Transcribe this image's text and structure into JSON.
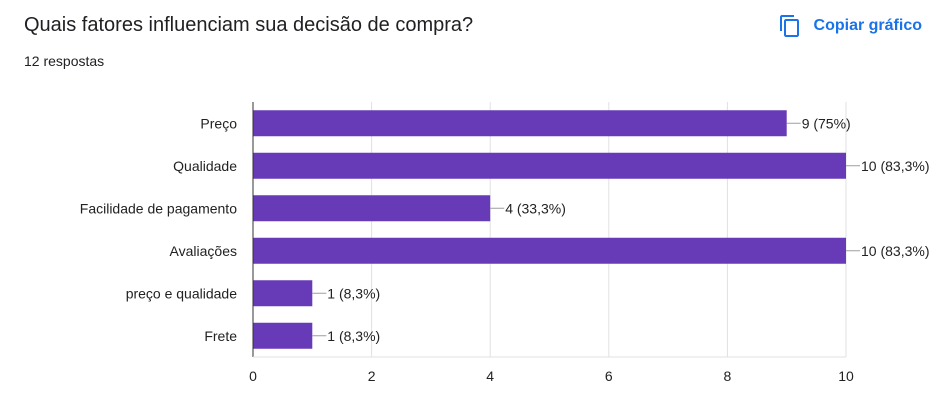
{
  "header": {
    "title": "Quais fatores influenciam sua decisão de compra?",
    "responses": "12 respostas",
    "copy_label": "Copiar gráfico",
    "copy_icon": "copy-icon",
    "accent_color": "#1a73e8"
  },
  "chart_data": {
    "type": "bar",
    "orientation": "horizontal",
    "categories": [
      "Preço",
      "Qualidade",
      "Facilidade de pagamento",
      "Avaliações",
      "preço e qualidade",
      "Frete"
    ],
    "values": [
      9,
      10,
      4,
      10,
      1,
      1
    ],
    "data_labels": [
      "9 (75%)",
      "10 (83,3%)",
      "4 (33,3%)",
      "10 (83,3%)",
      "1 (8,3%)",
      "1 (8,3%)"
    ],
    "xlim": [
      0,
      10
    ],
    "xticks": [
      0,
      2,
      4,
      6,
      8,
      10
    ],
    "grid": true,
    "bar_color": "#673ab7"
  }
}
